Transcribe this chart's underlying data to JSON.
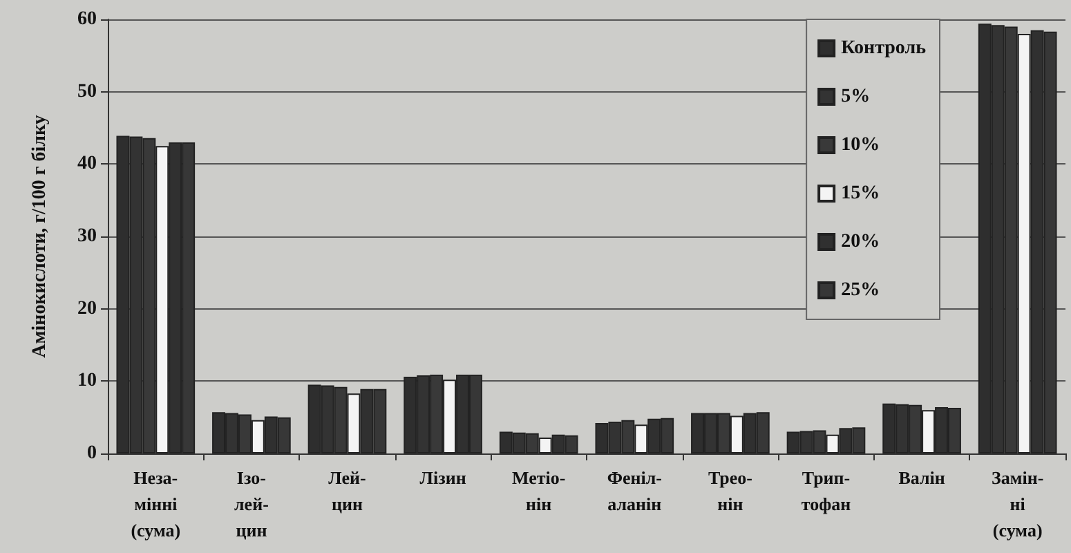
{
  "chart_data": {
    "type": "bar",
    "ylabel": "Амінокислоти, г/100 г білку",
    "categories": [
      "Неза-\nмінні\n(сума)",
      "Ізо-\nлей-\nцин",
      "Лей-\nцин",
      "Лізин",
      "Метіо-\nнін",
      "Феніл-\nаланін",
      "Трео-\nнін",
      "Трип-\nтофан",
      "Валін",
      "Замін-\nні\n(сума)"
    ],
    "series": [
      {
        "name": "Контроль",
        "color": "#2e2e2e",
        "values": [
          43.9,
          5.7,
          9.5,
          10.6,
          3.0,
          4.2,
          5.6,
          3.0,
          6.9,
          59.4
        ]
      },
      {
        "name": "5%",
        "color": "#333333",
        "values": [
          43.8,
          5.6,
          9.4,
          10.8,
          2.9,
          4.4,
          5.6,
          3.1,
          6.8,
          59.2
        ]
      },
      {
        "name": "10%",
        "color": "#393939",
        "values": [
          43.6,
          5.4,
          9.2,
          10.9,
          2.8,
          4.6,
          5.6,
          3.2,
          6.7,
          59.0
        ]
      },
      {
        "name": "15%",
        "color": "#f4f4f4",
        "values": [
          42.5,
          4.6,
          8.3,
          10.2,
          2.2,
          4.0,
          5.2,
          2.6,
          6.0,
          58.0
        ]
      },
      {
        "name": "20%",
        "color": "#303030",
        "values": [
          43.0,
          5.1,
          8.9,
          10.9,
          2.6,
          4.8,
          5.6,
          3.5,
          6.4,
          58.5
        ]
      },
      {
        "name": "25%",
        "color": "#373737",
        "values": [
          43.0,
          5.0,
          8.9,
          10.9,
          2.5,
          4.9,
          5.7,
          3.6,
          6.3,
          58.3
        ]
      }
    ],
    "ylim": [
      0,
      60
    ],
    "yticks": [
      0,
      10,
      20,
      30,
      40,
      50,
      60
    ],
    "grid": "y",
    "legend": "top right"
  }
}
